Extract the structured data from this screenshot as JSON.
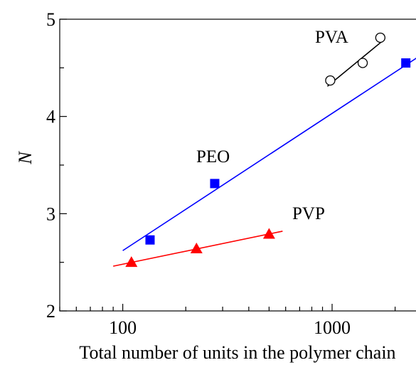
{
  "chart_data": {
    "type": "scatter",
    "xlabel": "Total number of units in the polymer chain",
    "ylabel": "N",
    "x_scale": "log",
    "xlim": [
      50,
      2700
    ],
    "ylim": [
      2,
      5
    ],
    "x_ticks": [
      {
        "value": 100,
        "label": "100"
      },
      {
        "value": 1000,
        "label": "1000"
      }
    ],
    "y_ticks": [
      {
        "value": 2,
        "label": "2"
      },
      {
        "value": 3,
        "label": "3"
      },
      {
        "value": 4,
        "label": "4"
      },
      {
        "value": 5,
        "label": "5"
      }
    ],
    "grid": false,
    "legend": "none",
    "series": [
      {
        "key": "pva",
        "marker": "circle-open",
        "color": "#000000",
        "points": [
          {
            "x": 980,
            "y": 4.37
          },
          {
            "x": 1400,
            "y": 4.55
          },
          {
            "x": 1700,
            "y": 4.81
          }
        ],
        "fit_line": {
          "x": [
            950,
            1750
          ],
          "y": [
            4.31,
            4.78
          ]
        }
      },
      {
        "key": "peo",
        "marker": "square-filled",
        "color": "#0000ff",
        "points": [
          {
            "x": 135,
            "y": 2.73
          },
          {
            "x": 275,
            "y": 3.31
          },
          {
            "x": 2250,
            "y": 4.55
          }
        ],
        "fit_line": {
          "x": [
            100,
            2700
          ],
          "y": [
            2.62,
            4.64
          ]
        }
      },
      {
        "key": "pvp",
        "marker": "triangle-filled",
        "color": "#ff0000",
        "points": [
          {
            "x": 110,
            "y": 2.5
          },
          {
            "x": 225,
            "y": 2.64
          },
          {
            "x": 500,
            "y": 2.79
          }
        ],
        "fit_line": {
          "x": [
            90,
            580
          ],
          "y": [
            2.46,
            2.82
          ]
        }
      }
    ],
    "annotations": [
      {
        "series": "pva",
        "text": "PVA"
      },
      {
        "series": "peo",
        "text": "PEO"
      },
      {
        "series": "pvp",
        "text": "PVP"
      }
    ]
  }
}
